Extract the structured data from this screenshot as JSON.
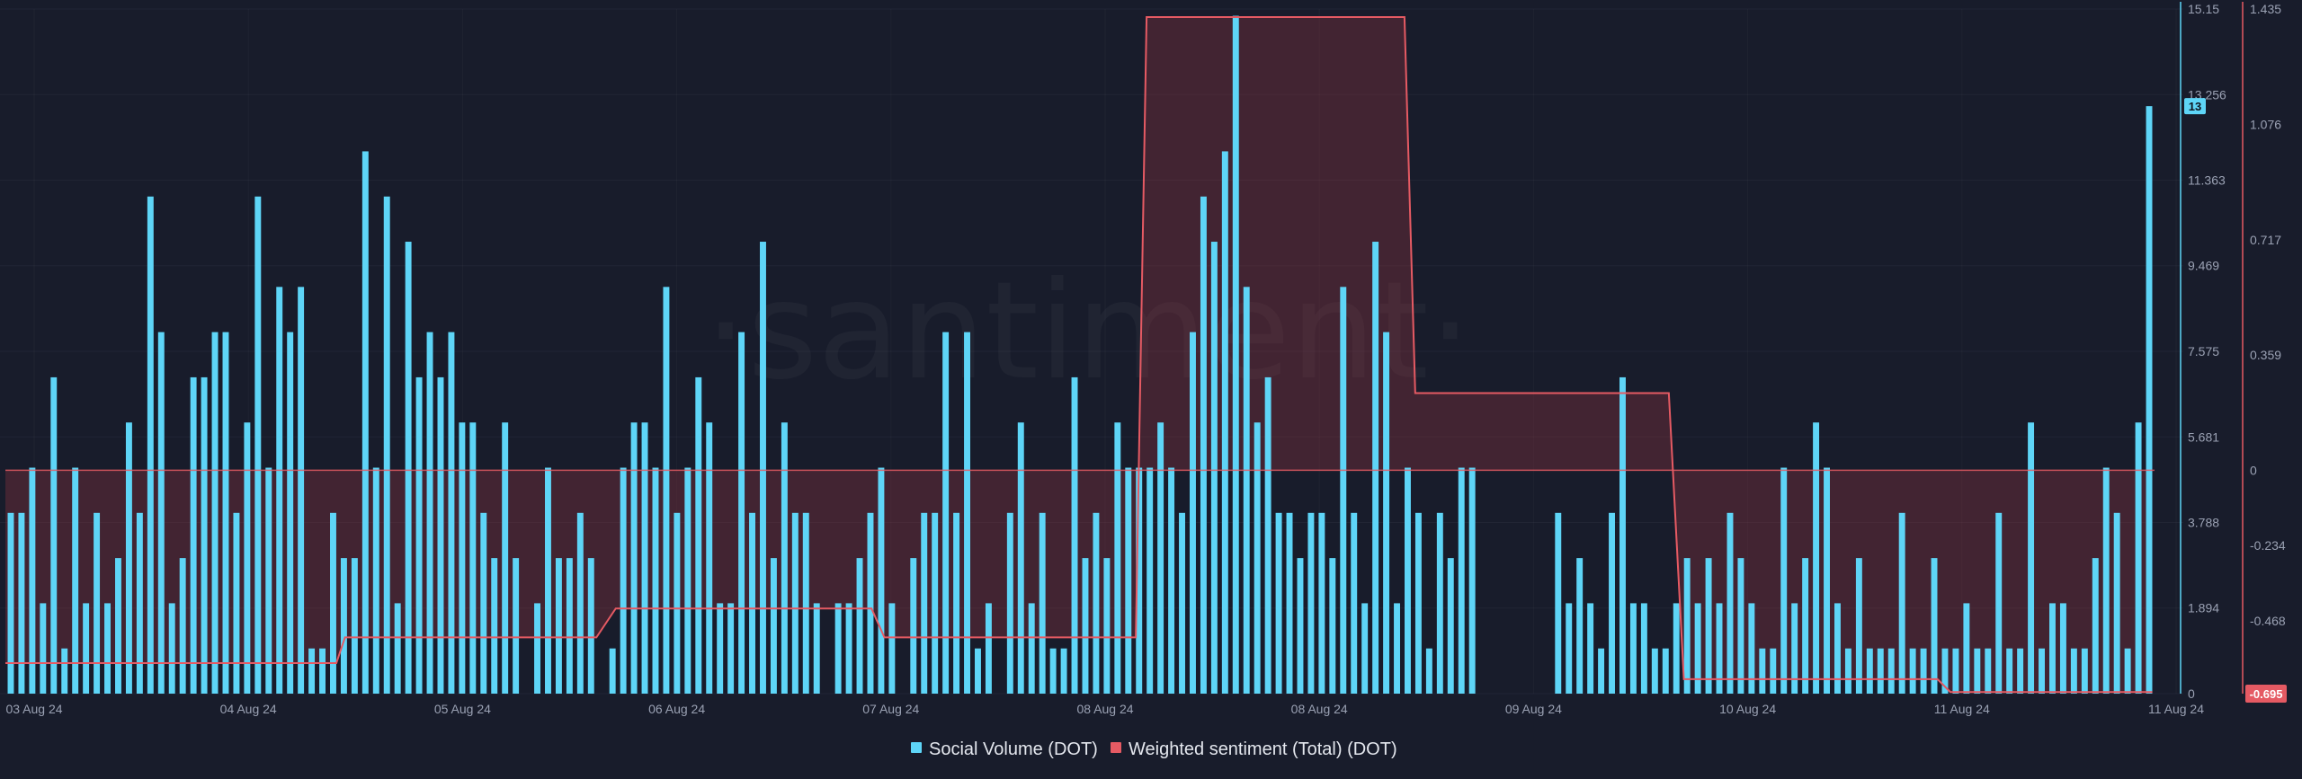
{
  "watermark": "·santiment·",
  "legend": [
    {
      "label": "Social Volume (DOT)",
      "color": "#5ed5f7"
    },
    {
      "label": "Weighted sentiment (Total) (DOT)",
      "color": "#e55a63"
    }
  ],
  "chart_data": {
    "type": "bar",
    "title": "",
    "grid": true,
    "legend_position": "bottom-center",
    "x_tick_labels": [
      "03 Aug 24",
      "04 Aug 24",
      "05 Aug 24",
      "06 Aug 24",
      "07 Aug 24",
      "08 Aug 24",
      "08 Aug 24",
      "09 Aug 24",
      "10 Aug 24",
      "11 Aug 24",
      "11 Aug 24"
    ],
    "y_left": {
      "tick_labels": [
        "0",
        "1.894",
        "3.788",
        "5.681",
        "7.575",
        "9.469",
        "11.363",
        "13.256",
        "15.15"
      ],
      "range": [
        0,
        15.15
      ],
      "current_value_badge": "13",
      "badge_color": "#5ed5f7"
    },
    "y_right": {
      "tick_labels": [
        "-0.695",
        "-0.468",
        "-0.234",
        "0",
        "0.359",
        "0.717",
        "1.076",
        "1.435"
      ],
      "range": [
        -0.695,
        1.435
      ],
      "current_value_badge": "-0.695",
      "badge_color": "#e55a63"
    },
    "series": [
      {
        "name": "Social Volume (DOT)",
        "type": "bar",
        "axis": "left",
        "color": "#5ed5f7",
        "values": [
          4,
          4,
          5,
          2,
          7,
          1,
          5,
          2,
          4,
          2,
          3,
          6,
          4,
          11,
          8,
          2,
          3,
          7,
          7,
          8,
          8,
          4,
          6,
          11,
          5,
          9,
          8,
          9,
          1,
          1,
          4,
          3,
          3,
          12,
          5,
          11,
          2,
          10,
          7,
          8,
          7,
          8,
          6,
          6,
          4,
          3,
          6,
          3,
          0,
          2,
          5,
          3,
          3,
          4,
          3,
          0,
          1,
          5,
          6,
          6,
          5,
          9,
          4,
          5,
          7,
          6,
          2,
          2,
          8,
          4,
          10,
          3,
          6,
          4,
          4,
          2,
          0,
          2,
          2,
          3,
          4,
          5,
          2,
          0,
          3,
          4,
          4,
          8,
          4,
          8,
          1,
          2,
          0,
          4,
          6,
          2,
          4,
          1,
          1,
          7,
          3,
          4,
          3,
          6,
          5,
          5,
          5,
          6,
          5,
          4,
          8,
          11,
          10,
          12,
          15,
          9,
          6,
          7,
          4,
          4,
          3,
          4,
          4,
          3,
          9,
          4,
          2,
          10,
          8,
          2,
          5,
          4,
          1,
          4,
          3,
          5,
          5,
          0,
          0,
          0,
          0,
          0,
          0,
          0,
          4,
          2,
          3,
          2,
          1,
          4,
          7,
          2,
          2,
          1,
          1,
          2,
          3,
          2,
          3,
          2,
          4,
          3,
          2,
          1,
          1,
          5,
          2,
          3,
          6,
          5,
          2,
          1,
          3,
          1,
          1,
          1,
          4,
          1,
          1,
          3,
          1,
          1,
          2,
          1,
          1,
          4,
          1,
          1,
          6,
          1,
          2,
          2,
          1,
          1,
          3,
          5,
          4,
          1,
          6,
          13
        ]
      },
      {
        "name": "Weighted sentiment (Total) (DOT)",
        "type": "step-area",
        "axis": "right",
        "color": "#e55a63",
        "x_fraction": [
          0,
          0.154,
          0.158,
          0.275,
          0.284,
          0.403,
          0.409,
          0.526,
          0.531,
          0.651,
          0.656,
          0.774,
          0.781,
          0.899,
          0.905,
          0.999
        ],
        "values": [
          -0.6,
          -0.6,
          -0.52,
          -0.52,
          -0.43,
          -0.43,
          -0.52,
          -0.52,
          1.41,
          1.41,
          0.24,
          0.24,
          -0.65,
          -0.65,
          -0.69,
          -0.69
        ]
      }
    ]
  }
}
